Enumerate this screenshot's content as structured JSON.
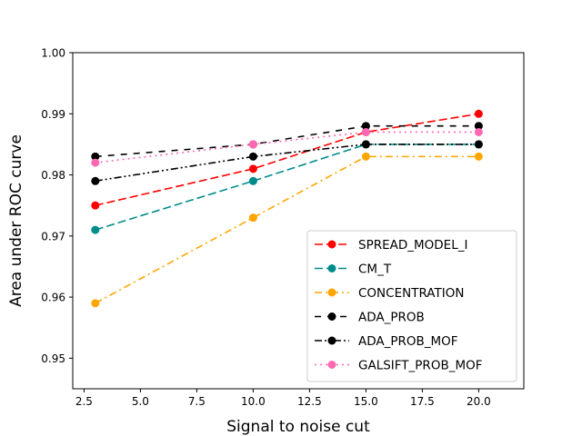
{
  "chart_data": {
    "type": "line",
    "title": "",
    "xlabel": "Signal to noise cut",
    "ylabel": "Area under ROC curve",
    "x": [
      3,
      10,
      15,
      20
    ],
    "xlim": [
      2,
      22
    ],
    "ylim": [
      0.945,
      1.0
    ],
    "xticks": [
      2.5,
      5.0,
      7.5,
      10.0,
      12.5,
      15.0,
      17.5,
      20.0
    ],
    "xtick_labels": [
      "2.5",
      "5.0",
      "7.5",
      "10.0",
      "12.5",
      "15.0",
      "17.5",
      "20.0"
    ],
    "yticks": [
      0.95,
      0.96,
      0.97,
      0.98,
      0.99,
      1.0
    ],
    "ytick_labels": [
      "0.95",
      "0.96",
      "0.97",
      "0.98",
      "0.99",
      "1.00"
    ],
    "grid": false,
    "legend_position": "lower-right",
    "series": [
      {
        "name": "SPREAD_MODEL_I",
        "values": [
          0.975,
          0.981,
          0.987,
          0.99
        ],
        "color": "#ff0000",
        "dash": "dashed"
      },
      {
        "name": "CM_T",
        "values": [
          0.971,
          0.979,
          0.985,
          0.985
        ],
        "color": "#008b8b",
        "dash": "dashed"
      },
      {
        "name": "CONCENTRATION",
        "values": [
          0.959,
          0.973,
          0.983,
          0.983
        ],
        "color": "#ffa500",
        "dash": "dashdot"
      },
      {
        "name": "ADA_PROB",
        "values": [
          0.983,
          0.985,
          0.988,
          0.988
        ],
        "color": "#000000",
        "dash": "loosedashed"
      },
      {
        "name": "ADA_PROB_MOF",
        "values": [
          0.979,
          0.983,
          0.985,
          0.985
        ],
        "color": "#000000",
        "dash": "dashdotdot"
      },
      {
        "name": "GALSIFT_PROB_MOF",
        "values": [
          0.982,
          0.985,
          0.987,
          0.987
        ],
        "color": "#ff69b4",
        "dash": "dotted"
      }
    ]
  }
}
